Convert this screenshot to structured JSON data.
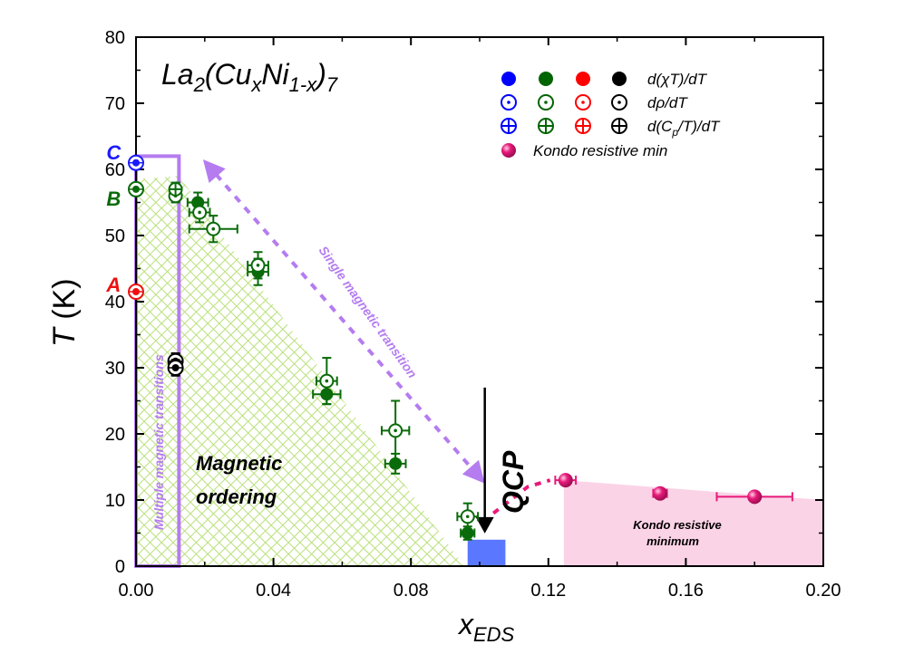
{
  "chart_data": {
    "type": "scatter",
    "title": "La2(CuxNi1-x)7",
    "title_parts": {
      "base1": "La",
      "sub1": "2",
      "base2": "(Cu",
      "sub2": "x",
      "base3": "Ni",
      "sub3": "1-x",
      "base4": ")",
      "sub4": "7"
    },
    "xlabel": {
      "main": "x",
      "sub": "EDS"
    },
    "ylabel": {
      "main": "T",
      "unit": " (K)"
    },
    "xlim": [
      0.0,
      0.2
    ],
    "ylim": [
      0,
      80
    ],
    "x_ticks": [
      "0.00",
      "0.04",
      "0.08",
      "0.12",
      "0.16",
      "0.20"
    ],
    "y_ticks": [
      "0",
      "10",
      "20",
      "30",
      "40",
      "50",
      "60",
      "70",
      "80"
    ],
    "legend": {
      "placement": "top-right",
      "rows": [
        {
          "label": "d(χT)/dT",
          "style": "filled"
        },
        {
          "label": "dρ/dT",
          "style": "open-dot"
        },
        {
          "label": "d(Cp/T)/dT",
          "label_parts": [
            "d(C",
            "p",
            "/T)/dT"
          ],
          "style": "crossed"
        },
        {
          "label": "Kondo resistive min",
          "style": "kondo"
        }
      ],
      "colors": [
        "#0000ff",
        "#006400",
        "#ff0000",
        "#000000"
      ]
    },
    "colors": {
      "blue": "#1a1aff",
      "green": "#0a6b0a",
      "red": "#ee1111",
      "black": "#000000",
      "kondo": "#e8197a",
      "kondo_fill": "#fbd3e6",
      "hatch": "#b9e07a",
      "purple": "#b57cf0",
      "qcp_box": "#5a78ff"
    },
    "series": [
      {
        "name": "d(χT)/dT",
        "color": "#006400",
        "style": "filled",
        "points": [
          {
            "x": 0.0115,
            "y": 57.0,
            "xerr": 0.001,
            "yerr": 1.0
          },
          {
            "x": 0.018,
            "y": 55.0,
            "xerr": 0.003,
            "yerr": 1.5
          },
          {
            "x": 0.0355,
            "y": 44.5,
            "xerr": 0.003,
            "yerr": 2.0
          },
          {
            "x": 0.0555,
            "y": 26.0,
            "xerr": 0.004,
            "yerr": 1.5
          },
          {
            "x": 0.0755,
            "y": 15.5,
            "xerr": 0.003,
            "yerr": 1.5
          },
          {
            "x": 0.0965,
            "y": 5.0,
            "xerr": 0.002,
            "yerr": 1.0
          }
        ]
      },
      {
        "name": "dρ/dT",
        "color": "#006400",
        "style": "open-dot",
        "points": [
          {
            "x": 0.0115,
            "y": 56.0,
            "xerr": 0.001,
            "yerr": 1.0
          },
          {
            "x": 0.0185,
            "y": 53.5,
            "xerr": 0.003,
            "yerr": 1.5
          },
          {
            "x": 0.0225,
            "y": 51.0,
            "xerr": 0.007,
            "yerr": 2.0
          },
          {
            "x": 0.0355,
            "y": 45.5,
            "xerr": 0.003,
            "yerr": 2.0
          },
          {
            "x": 0.0555,
            "y": 28.0,
            "xerr": 0.003,
            "yerr": 3.5
          },
          {
            "x": 0.0755,
            "y": 20.5,
            "xerr": 0.004,
            "yerr": 4.5
          },
          {
            "x": 0.0965,
            "y": 7.5,
            "xerr": 0.003,
            "yerr": 2.0
          }
        ]
      },
      {
        "name": "d(Cp/T)/dT",
        "color": "#006400",
        "style": "crossed",
        "points": [
          {
            "x": 0.0115,
            "y": 57.0,
            "xerr": 0.0,
            "yerr": 0.0
          }
        ]
      },
      {
        "name": "Kondo resistive min",
        "color": "#e8197a",
        "style": "kondo",
        "points": [
          {
            "x": 0.125,
            "y": 13.0,
            "xerr": 0.003,
            "yerr": 0.0
          },
          {
            "x": 0.1525,
            "y": 11.0,
            "xerr": 0.002,
            "yerr": 0.0
          },
          {
            "x": 0.18,
            "y": 10.5,
            "xerr": 0.011,
            "yerr": 0.0
          }
        ]
      }
    ],
    "x0_points": [
      {
        "x": 0.0,
        "y": 61.0,
        "color": "#1a1aff",
        "style": "all"
      },
      {
        "x": 0.0,
        "y": 57.0,
        "color": "#0a6b0a",
        "style": "all"
      },
      {
        "x": 0.0,
        "y": 41.5,
        "color": "#ee1111",
        "style": "all"
      }
    ],
    "black_points": [
      {
        "x": 0.0115,
        "y": 31.0,
        "style": "all"
      },
      {
        "x": 0.0115,
        "y": 30.0,
        "style": "all"
      }
    ],
    "point_labels": [
      {
        "text": "C",
        "x": -0.0065,
        "y": 62.5,
        "color": "#1a1aff"
      },
      {
        "text": "B",
        "x": -0.0065,
        "y": 55.5,
        "color": "#0a6b0a"
      },
      {
        "text": "A",
        "x": -0.0065,
        "y": 42.5,
        "color": "#ee1111"
      }
    ],
    "annotations": {
      "magnetic_ordering": [
        "Magnetic",
        "ordering"
      ],
      "multiple": "Multiple magnetic transitions",
      "single": "Single magnetic transition",
      "qcp": "QCP",
      "kondo_region": [
        "Kondo resistive",
        "minimum"
      ]
    },
    "regions": {
      "hatch_polygon": [
        [
          0.0,
          58.5
        ],
        [
          0.0125,
          59.0
        ],
        [
          0.0955,
          0.0
        ],
        [
          0.0,
          0.0
        ]
      ],
      "purple_box": {
        "x0": 0.0,
        "x1": 0.0125,
        "y0": 0.0,
        "y1": 62.0
      },
      "qcp_box": {
        "x0": 0.0965,
        "x1": 0.1075,
        "y0": 0.0,
        "y1": 4.0
      },
      "qcp_arrow": {
        "x": 0.1015,
        "y_top": 27.0,
        "y_bottom": 5.5
      },
      "kondo_fill": [
        [
          0.1245,
          13.0
        ],
        [
          0.2,
          10.0
        ],
        [
          0.2,
          0.0
        ],
        [
          0.1245,
          0.0
        ]
      ],
      "kondo_dashed": [
        [
          0.104,
          8.0
        ],
        [
          0.114,
          12.0
        ],
        [
          0.1205,
          13.0
        ]
      ],
      "single_arrow": {
        "x0": 0.0195,
        "y0": 61.5,
        "x1": 0.1015,
        "y1": 12.5
      }
    }
  }
}
